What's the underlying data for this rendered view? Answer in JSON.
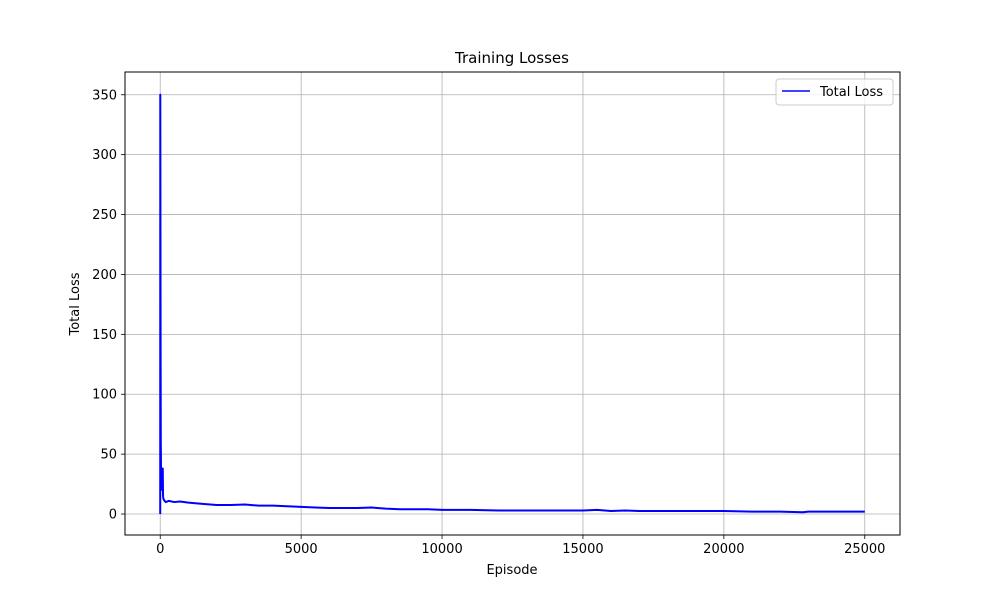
{
  "chart_data": {
    "type": "line",
    "title": "Training Losses",
    "xlabel": "Episode",
    "ylabel": "Total Loss",
    "xlim": [
      -1250,
      26250
    ],
    "ylim": [
      -17.5,
      369
    ],
    "xticks": [
      0,
      5000,
      10000,
      15000,
      20000,
      25000
    ],
    "xtick_labels": [
      "0",
      "5000",
      "10000",
      "15000",
      "20000",
      "25000"
    ],
    "yticks": [
      0,
      50,
      100,
      150,
      200,
      250,
      300,
      350
    ],
    "ytick_labels": [
      "0",
      "50",
      "100",
      "150",
      "200",
      "250",
      "300",
      "350"
    ],
    "grid": true,
    "legend_position": "top-right",
    "series": [
      {
        "name": "Total Loss",
        "color": "#0000ff",
        "x": [
          0,
          2,
          5,
          10,
          15,
          20,
          30,
          50,
          70,
          90,
          100,
          110,
          150,
          200,
          300,
          500,
          700,
          1000,
          1500,
          2000,
          2500,
          3000,
          3500,
          4000,
          4500,
          5000,
          5500,
          6000,
          6500,
          7000,
          7500,
          8000,
          8500,
          9000,
          9500,
          10000,
          11000,
          12000,
          13000,
          14000,
          15000,
          15500,
          16000,
          16500,
          17000,
          18000,
          19000,
          20000,
          21000,
          22000,
          22800,
          23000,
          24000,
          25000
        ],
        "values": [
          0,
          350,
          300,
          200,
          120,
          60,
          35,
          25,
          20,
          38,
          15,
          13,
          11,
          10,
          11,
          10,
          10.5,
          9.5,
          8.5,
          7.5,
          7.5,
          8,
          7,
          7,
          6.5,
          6,
          5.5,
          5,
          5,
          5,
          5.5,
          4.5,
          4,
          4,
          4,
          3.5,
          3.5,
          3,
          3,
          3,
          3,
          3.5,
          2.5,
          3,
          2.5,
          2.5,
          2.5,
          2.5,
          2,
          2,
          1.5,
          2,
          2,
          2
        ]
      }
    ]
  }
}
